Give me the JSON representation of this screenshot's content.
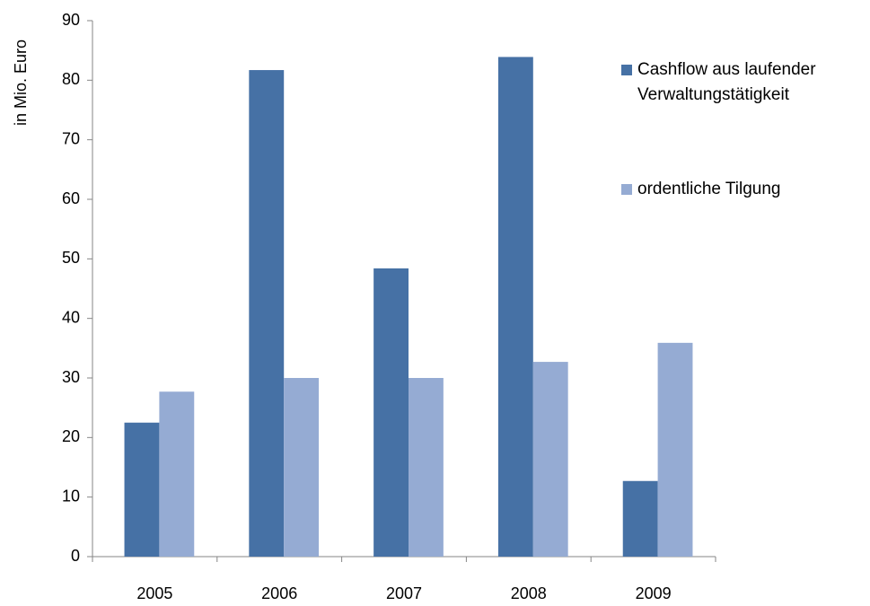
{
  "chart_data": {
    "type": "bar",
    "y_axis_label": "in Mio. Euro",
    "categories": [
      "2005",
      "2006",
      "2007",
      "2008",
      "2009"
    ],
    "series": [
      {
        "name": "Cashflow aus laufender Verwaltungstätigkeit",
        "color": "#4671a5",
        "values": [
          22.5,
          81.7,
          48.4,
          83.9,
          12.7
        ]
      },
      {
        "name": "ordentliche Tilgung",
        "color": "#95abd3",
        "values": [
          27.7,
          30.0,
          30.0,
          32.7,
          35.9
        ]
      }
    ],
    "ylim": [
      0,
      90
    ],
    "yticks": [
      0,
      10,
      20,
      30,
      40,
      50,
      60,
      70,
      80,
      90
    ],
    "grid": false,
    "legend": "right"
  }
}
